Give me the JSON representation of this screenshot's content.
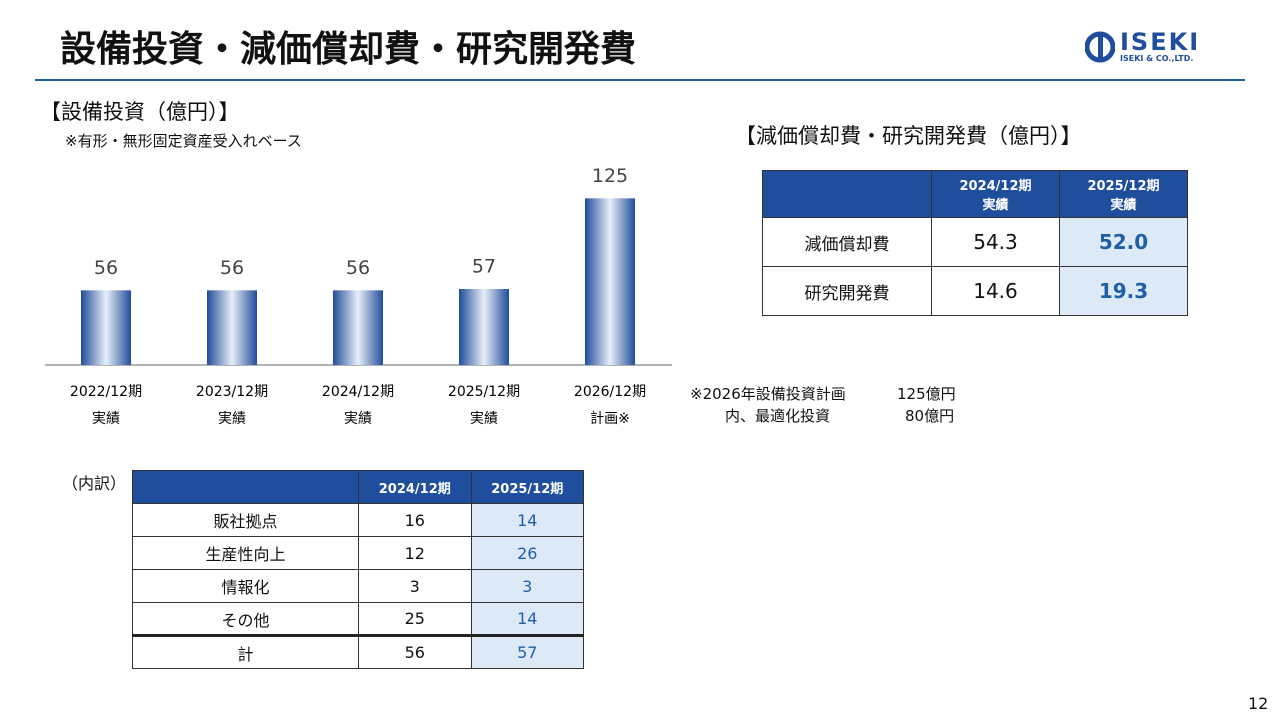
{
  "header": {
    "title": "設備投資・減価償却費・研究開発費",
    "logo": "ISEKI",
    "logo_sub": "ISEKI & CO.,LTD."
  },
  "chart_data": {
    "type": "bar",
    "title": "【設備投資（億円）】",
    "subtitle": "※有形・無形固定資産受入れベース",
    "categories": [
      "2022/12期",
      "2023/12期",
      "2024/12期",
      "2025/12期",
      "2026/12期"
    ],
    "category_notes": [
      "実績",
      "実績",
      "実績",
      "実績",
      "計画※"
    ],
    "values": [
      56,
      56,
      56,
      57,
      125
    ],
    "color": "#1f4e9c",
    "ylim": [
      0,
      150
    ]
  },
  "amortization_table": {
    "title": "【減価償却費・研究開発費（億円）】",
    "columns": [
      [
        "2024/12期",
        "実績"
      ],
      [
        "2025/12期",
        "実績"
      ]
    ],
    "rows": [
      [
        "減価償却費",
        "54.3",
        "52.0"
      ],
      [
        "研究開発費",
        "14.6",
        "19.3"
      ]
    ]
  },
  "plan_note": [
    [
      "※2026年設備投資計画",
      "125億円"
    ],
    [
      "内、最適化投資",
      "80億円"
    ]
  ],
  "breakdown_table": {
    "label": "（内訳）",
    "columns": [
      "2024/12期",
      "2025/12期"
    ],
    "rows": [
      [
        "販社拠点",
        "16",
        "14"
      ],
      [
        "生産性向上",
        "12",
        "26"
      ],
      [
        "情報化",
        "3",
        "3"
      ],
      [
        "その他",
        "25",
        "14"
      ],
      [
        "計",
        "56",
        "57"
      ]
    ]
  },
  "page_number": "12"
}
